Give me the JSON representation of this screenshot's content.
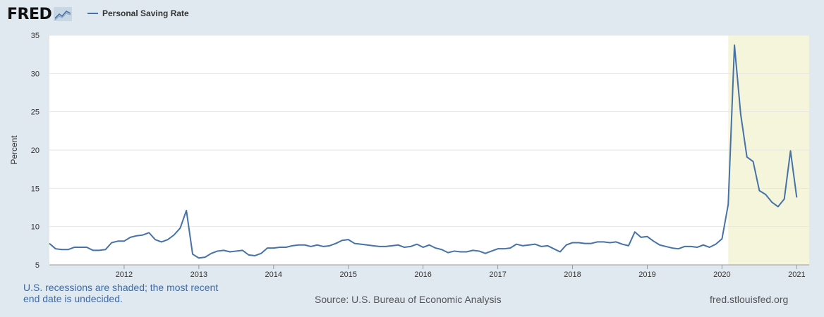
{
  "logo": {
    "text": "FRED",
    "icon": "fred-trendline-icon"
  },
  "legend": {
    "label": "Personal Saving Rate",
    "color": "#4572a7"
  },
  "footer": {
    "note": "U.S. recessions are shaded; the most recent end date is undecided.",
    "source": "Source: U.S. Bureau of Economic Analysis",
    "url": "fred.stlouisfed.org"
  },
  "chart_data": {
    "type": "line",
    "title": "",
    "xlabel": "",
    "ylabel": "Percent",
    "ylim": [
      5,
      35
    ],
    "xlim": [
      "2011-01",
      "2021-03"
    ],
    "yticks": [
      5,
      10,
      15,
      20,
      25,
      30,
      35
    ],
    "xticks": [
      "2012",
      "2013",
      "2014",
      "2015",
      "2016",
      "2017",
      "2018",
      "2019",
      "2020",
      "2021"
    ],
    "grid": true,
    "recession_shading": {
      "start": "2020-02",
      "end": "2021-03",
      "color": "#f5f5dc"
    },
    "series": [
      {
        "name": "Personal Saving Rate",
        "color": "#4572a7",
        "start": "2011-01",
        "frequency": "monthly",
        "values": [
          7.8,
          7.1,
          7.0,
          7.0,
          7.3,
          7.3,
          7.3,
          6.9,
          6.9,
          7.0,
          7.9,
          8.1,
          8.1,
          8.6,
          8.8,
          8.9,
          9.2,
          8.3,
          8.0,
          8.3,
          8.9,
          9.8,
          12.1,
          6.4,
          5.9,
          6.0,
          6.5,
          6.8,
          6.9,
          6.7,
          6.8,
          6.9,
          6.3,
          6.2,
          6.5,
          7.2,
          7.2,
          7.3,
          7.3,
          7.5,
          7.6,
          7.6,
          7.4,
          7.6,
          7.4,
          7.5,
          7.8,
          8.2,
          8.3,
          7.8,
          7.7,
          7.6,
          7.5,
          7.4,
          7.4,
          7.5,
          7.6,
          7.3,
          7.4,
          7.7,
          7.3,
          7.6,
          7.2,
          7.0,
          6.6,
          6.8,
          6.7,
          6.7,
          6.9,
          6.8,
          6.5,
          6.8,
          7.1,
          7.1,
          7.2,
          7.7,
          7.5,
          7.6,
          7.7,
          7.4,
          7.5,
          7.1,
          6.7,
          7.6,
          7.9,
          7.9,
          7.8,
          7.8,
          8.0,
          8.0,
          7.9,
          8.0,
          7.7,
          7.5,
          9.3,
          8.6,
          8.7,
          8.1,
          7.6,
          7.4,
          7.2,
          7.1,
          7.4,
          7.4,
          7.3,
          7.6,
          7.3,
          7.7,
          8.4,
          12.9,
          33.7,
          24.7,
          19.1,
          18.5,
          14.7,
          14.2,
          13.2,
          12.6,
          13.6,
          19.9,
          13.8
        ]
      }
    ]
  }
}
